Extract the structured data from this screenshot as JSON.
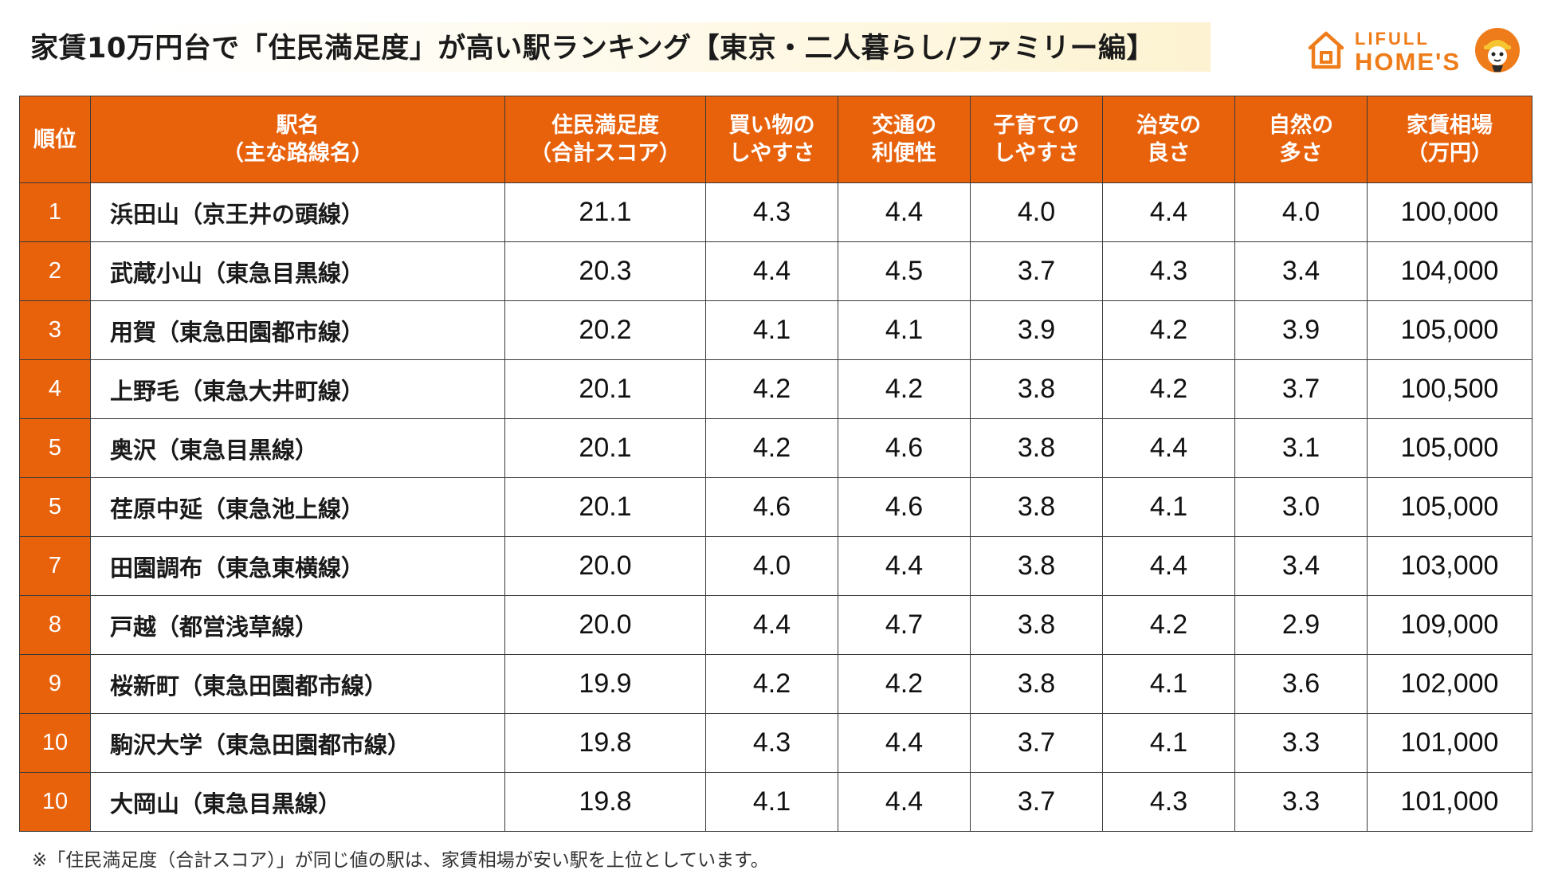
{
  "title": "家賃10万円台で「住民満足度」が高い駅ランキング【東京・二人暮らし/ファミリー編】",
  "logo": {
    "line1": "LIFULL",
    "line2": "HOME'S",
    "brand_color": "#ef7c1a"
  },
  "table": {
    "accent_color": "#e8620c",
    "headers": [
      {
        "line1": "順位",
        "line2": ""
      },
      {
        "line1": "駅名",
        "line2": "（主な路線名）"
      },
      {
        "line1": "住民満足度",
        "line2": "（合計スコア）"
      },
      {
        "line1": "買い物の",
        "line2": "しやすさ"
      },
      {
        "line1": "交通の",
        "line2": "利便性"
      },
      {
        "line1": "子育ての",
        "line2": "しやすさ"
      },
      {
        "line1": "治安の",
        "line2": "良さ"
      },
      {
        "line1": "自然の",
        "line2": "多さ"
      },
      {
        "line1": "家賃相場",
        "line2": "（万円）"
      }
    ],
    "rows": [
      {
        "rank": "1",
        "station": "浜田山（京王井の頭線）",
        "total": "21.1",
        "shopping": "4.3",
        "transport": "4.4",
        "childcare": "4.0",
        "safety": "4.4",
        "nature": "4.0",
        "rent": "100,000"
      },
      {
        "rank": "2",
        "station": "武蔵小山（東急目黒線）",
        "total": "20.3",
        "shopping": "4.4",
        "transport": "4.5",
        "childcare": "3.7",
        "safety": "4.3",
        "nature": "3.4",
        "rent": "104,000"
      },
      {
        "rank": "3",
        "station": "用賀（東急田園都市線）",
        "total": "20.2",
        "shopping": "4.1",
        "transport": "4.1",
        "childcare": "3.9",
        "safety": "4.2",
        "nature": "3.9",
        "rent": "105,000"
      },
      {
        "rank": "4",
        "station": "上野毛（東急大井町線）",
        "total": "20.1",
        "shopping": "4.2",
        "transport": "4.2",
        "childcare": "3.8",
        "safety": "4.2",
        "nature": "3.7",
        "rent": "100,500"
      },
      {
        "rank": "5",
        "station": "奥沢（東急目黒線）",
        "total": "20.1",
        "shopping": "4.2",
        "transport": "4.6",
        "childcare": "3.8",
        "safety": "4.4",
        "nature": "3.1",
        "rent": "105,000"
      },
      {
        "rank": "5",
        "station": "荏原中延（東急池上線）",
        "total": "20.1",
        "shopping": "4.6",
        "transport": "4.6",
        "childcare": "3.8",
        "safety": "4.1",
        "nature": "3.0",
        "rent": "105,000"
      },
      {
        "rank": "7",
        "station": "田園調布（東急東横線）",
        "total": "20.0",
        "shopping": "4.0",
        "transport": "4.4",
        "childcare": "3.8",
        "safety": "4.4",
        "nature": "3.4",
        "rent": "103,000"
      },
      {
        "rank": "8",
        "station": "戸越（都営浅草線）",
        "total": "20.0",
        "shopping": "4.4",
        "transport": "4.7",
        "childcare": "3.8",
        "safety": "4.2",
        "nature": "2.9",
        "rent": "109,000"
      },
      {
        "rank": "9",
        "station": "桜新町（東急田園都市線）",
        "total": "19.9",
        "shopping": "4.2",
        "transport": "4.2",
        "childcare": "3.8",
        "safety": "4.1",
        "nature": "3.6",
        "rent": "102,000"
      },
      {
        "rank": "10",
        "station": "駒沢大学（東急田園都市線）",
        "total": "19.8",
        "shopping": "4.3",
        "transport": "4.4",
        "childcare": "3.7",
        "safety": "4.1",
        "nature": "3.3",
        "rent": "101,000"
      },
      {
        "rank": "10",
        "station": "大岡山（東急目黒線）",
        "total": "19.8",
        "shopping": "4.1",
        "transport": "4.4",
        "childcare": "3.7",
        "safety": "4.3",
        "nature": "3.3",
        "rent": "101,000"
      }
    ]
  },
  "note": "※「住民満足度（合計スコア）」が同じ値の駅は、家賃相場が安い駅を上位としています。"
}
